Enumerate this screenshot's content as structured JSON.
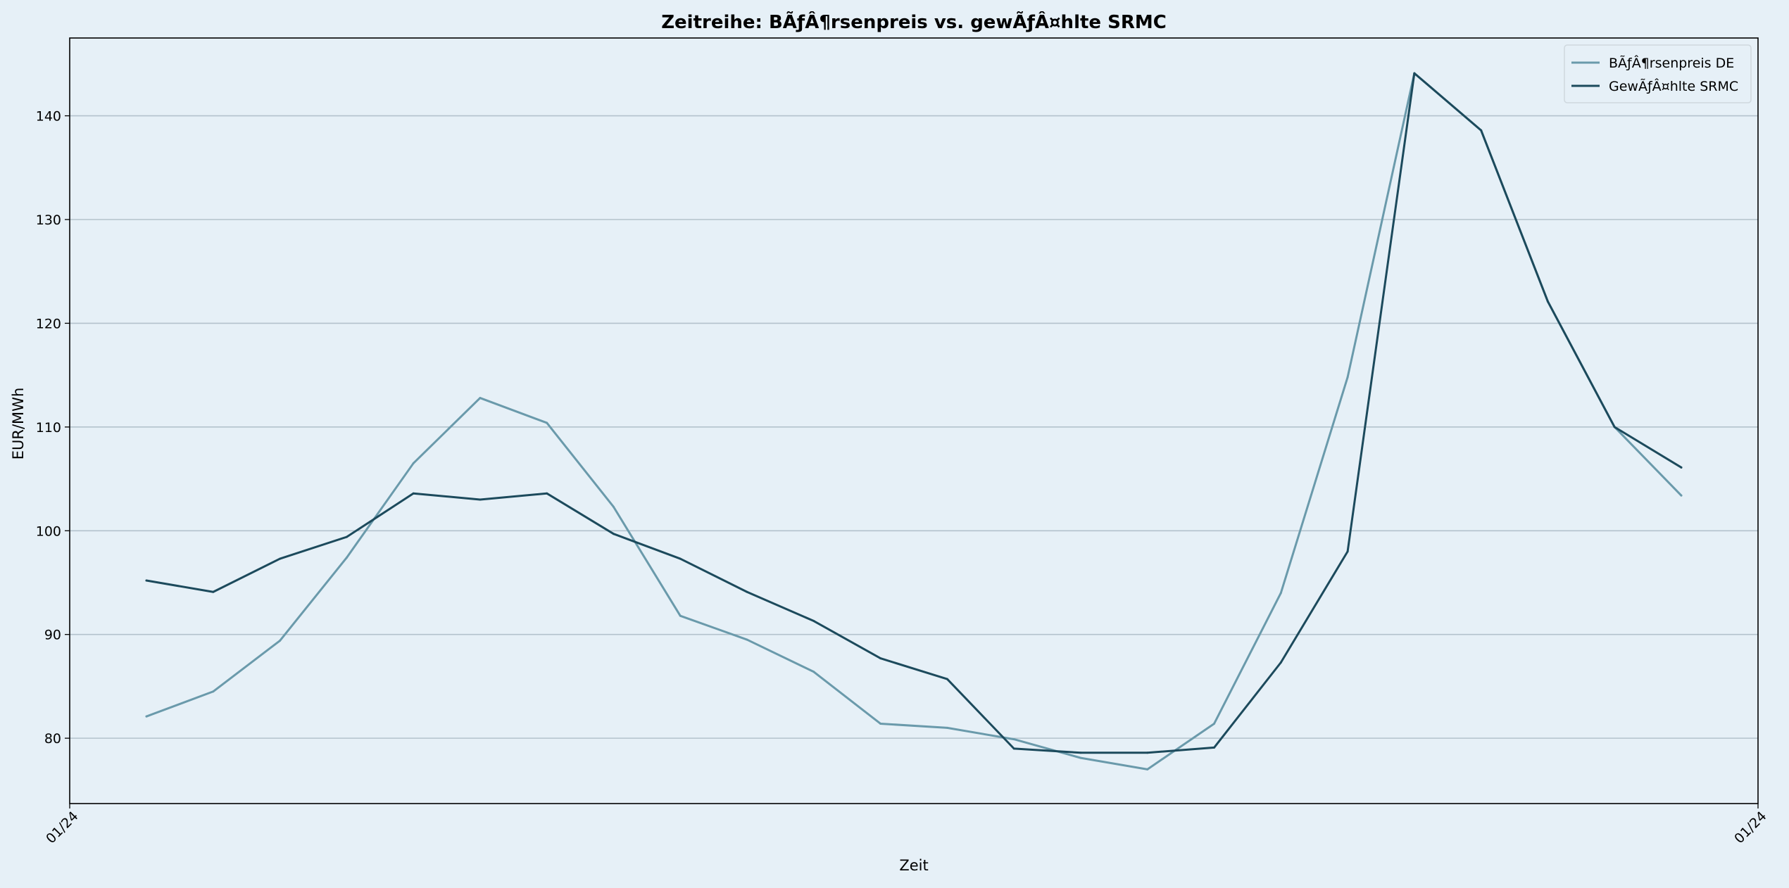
{
  "chart_data": {
    "type": "line",
    "title": "Zeitreihe: BÃƒÂ¶rsenpreis vs. gewÃƒÂ¤hlte SRMC",
    "xlabel": "Zeit",
    "ylabel": "EUR/MWh",
    "x": [
      1,
      2,
      3,
      4,
      5,
      6,
      7,
      8,
      9,
      10,
      11,
      12,
      13,
      14,
      15,
      16,
      17,
      18,
      19,
      20,
      21,
      22,
      23,
      24
    ],
    "xlim": [
      -0.15,
      25.15
    ],
    "x_ticks": [
      {
        "x": -0.15,
        "label": "01/24"
      },
      {
        "x": 25.15,
        "label": "01/24"
      }
    ],
    "ylim": [
      73.7,
      147.5
    ],
    "y_ticks": [
      80,
      90,
      100,
      110,
      120,
      130,
      140
    ],
    "grid": "horizontal",
    "legend_position": "top-right",
    "series": [
      {
        "name": "BÃƒÂ¶rsenpreis DE",
        "color": "#6a9aab",
        "values": [
          82.1,
          84.5,
          89.4,
          97.4,
          106.5,
          112.8,
          110.4,
          102.3,
          91.8,
          89.5,
          86.4,
          81.4,
          81.0,
          79.9,
          78.1,
          77.0,
          81.4,
          94.0,
          114.8,
          144.1,
          138.6,
          122.1,
          110.0,
          103.4
        ]
      },
      {
        "name": "GewÃƒÂ¤hlte SRMC",
        "color": "#1c4a5c",
        "values": [
          95.2,
          94.1,
          97.3,
          99.4,
          103.6,
          103.0,
          103.6,
          99.7,
          97.3,
          94.1,
          91.3,
          87.7,
          85.7,
          79.0,
          78.6,
          78.6,
          79.1,
          87.3,
          98.0,
          144.1,
          138.6,
          122.1,
          110.0,
          106.1
        ]
      }
    ]
  }
}
